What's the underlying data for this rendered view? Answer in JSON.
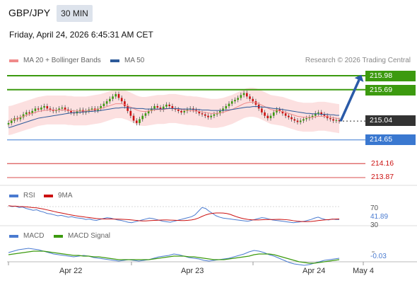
{
  "header": {
    "symbol": "GBP/JPY",
    "interval": "30 MIN",
    "timestamp": "Friday, April 24, 2026 6:45:31 AM CET"
  },
  "legend": {
    "ma20": {
      "label": "MA 20 + Bollinger Bands",
      "color": "#f08a8a"
    },
    "ma50": {
      "label": "MA 50",
      "color": "#2d5a9a"
    },
    "credit": "Research © 2026 Trading Central"
  },
  "chart_data": {
    "type": "line",
    "price_levels": [
      {
        "value": 215.98,
        "label": "215.98",
        "style": "resistance",
        "color": "#3c9a0f"
      },
      {
        "value": 215.69,
        "label": "215.69",
        "style": "resistance",
        "color": "#3c9a0f"
      },
      {
        "value": 215.04,
        "label": "215.04",
        "style": "last-price",
        "color": "#333333"
      },
      {
        "value": 214.65,
        "label": "214.65",
        "style": "pivot",
        "color": "#3a78d0"
      },
      {
        "value": 214.16,
        "label": "214.16",
        "style": "support",
        "color": "#cc1111"
      },
      {
        "value": 213.87,
        "label": "213.87",
        "style": "support",
        "color": "#cc1111"
      }
    ],
    "x_ticks": [
      "Apr 22",
      "Apr 23",
      "Apr 24",
      "May 4"
    ],
    "price_range": [
      213.7,
      216.15
    ],
    "close": [
      215.0,
      215.05,
      215.1,
      215.08,
      215.12,
      215.18,
      215.22,
      215.2,
      215.25,
      215.3,
      215.28,
      215.32,
      215.35,
      215.3,
      215.28,
      215.25,
      215.27,
      215.3,
      215.32,
      215.28,
      215.25,
      215.22,
      215.2,
      215.24,
      215.27,
      215.22,
      215.25,
      215.28,
      215.3,
      215.26,
      215.3,
      215.35,
      215.4,
      215.45,
      215.5,
      215.55,
      215.6,
      215.52,
      215.45,
      215.35,
      215.25,
      215.15,
      215.05,
      215.0,
      215.08,
      215.15,
      215.2,
      215.25,
      215.3,
      215.35,
      215.32,
      215.28,
      215.34,
      215.38,
      215.35,
      215.3,
      215.28,
      215.25,
      215.22,
      215.25,
      215.28,
      215.3,
      215.27,
      215.24,
      215.2,
      215.18,
      215.15,
      215.12,
      215.15,
      215.18,
      215.2,
      215.25,
      215.3,
      215.35,
      215.4,
      215.45,
      215.48,
      215.52,
      215.58,
      215.62,
      215.55,
      215.5,
      215.45,
      215.38,
      215.3,
      215.22,
      215.15,
      215.1,
      215.15,
      215.22,
      215.28,
      215.25,
      215.2,
      215.15,
      215.12,
      215.08,
      215.05,
      215.02,
      215.05,
      215.08,
      215.1,
      215.12,
      215.15,
      215.2,
      215.22,
      215.18,
      215.15,
      215.1,
      215.08,
      215.05,
      215.06,
      215.04
    ],
    "ma20": [
      215.05,
      215.06,
      215.08,
      215.1,
      215.12,
      215.14,
      215.16,
      215.18,
      215.2,
      215.22,
      215.24,
      215.25,
      215.26,
      215.27,
      215.27,
      215.27,
      215.27,
      215.27,
      215.27,
      215.27,
      215.26,
      215.26,
      215.25,
      215.25,
      215.25,
      215.25,
      215.25,
      215.26,
      215.27,
      215.28,
      215.29,
      215.3,
      215.32,
      215.34,
      215.36,
      215.38,
      215.4,
      215.4,
      215.4,
      215.38,
      215.36,
      215.33,
      215.3,
      215.27,
      215.25,
      215.24,
      215.24,
      215.25,
      215.26,
      215.27,
      215.28,
      215.28,
      215.28,
      215.29,
      215.3,
      215.3,
      215.3,
      215.29,
      215.28,
      215.27,
      215.26,
      215.26,
      215.25,
      215.25,
      215.24,
      215.23,
      215.22,
      215.21,
      215.2,
      215.2,
      215.2,
      215.21,
      215.22,
      215.24,
      215.26,
      215.28,
      215.31,
      215.34,
      215.37,
      215.4,
      215.42,
      215.43,
      215.43,
      215.42,
      215.4,
      215.37,
      215.34,
      215.31,
      215.28,
      215.27,
      215.26,
      215.25,
      215.24,
      215.22,
      215.2,
      215.18,
      215.16,
      215.14,
      215.13,
      215.12,
      215.12,
      215.12,
      215.12,
      215.13,
      215.14,
      215.14,
      215.14,
      215.13,
      215.12,
      215.11,
      215.1,
      215.09
    ],
    "bb_width": 0.3,
    "ma50": [
      214.9,
      214.92,
      214.94,
      214.96,
      214.98,
      215.0,
      215.02,
      215.04,
      215.06,
      215.08,
      215.1,
      215.11,
      215.12,
      215.13,
      215.14,
      215.15,
      215.16,
      215.17,
      215.18,
      215.19,
      215.2,
      215.21,
      215.21,
      215.22,
      215.22,
      215.23,
      215.23,
      215.24,
      215.24,
      215.25,
      215.25,
      215.26,
      215.27,
      215.28,
      215.29,
      215.3,
      215.31,
      215.31,
      215.32,
      215.32,
      215.32,
      215.31,
      215.31,
      215.3,
      215.3,
      215.3,
      215.29,
      215.29,
      215.29,
      215.29,
      215.29,
      215.29,
      215.29,
      215.3,
      215.3,
      215.3,
      215.3,
      215.3,
      215.29,
      215.29,
      215.29,
      215.29,
      215.28,
      215.28,
      215.28,
      215.27,
      215.27,
      215.27,
      215.26,
      215.26,
      215.26,
      215.26,
      215.26,
      215.27,
      215.27,
      215.28,
      215.29,
      215.3,
      215.31,
      215.32,
      215.33,
      215.33,
      215.34,
      215.34,
      215.34,
      215.33,
      215.33,
      215.32,
      215.31,
      215.3,
      215.3,
      215.29,
      215.28,
      215.27,
      215.26,
      215.25,
      215.24,
      215.23,
      215.22,
      215.21,
      215.2,
      215.2,
      215.19,
      215.19,
      215.19,
      215.18,
      215.18,
      215.18,
      215.17,
      215.17,
      215.16,
      215.16
    ],
    "rsi": {
      "label": "RSI",
      "color": "#4a7bd0",
      "ma_label": "9MA",
      "ma_color": "#cc1111",
      "range": [
        0,
        100
      ],
      "levels": [
        70,
        30
      ],
      "level_labels": [
        "70",
        "30"
      ],
      "value": "41.89",
      "values": [
        72,
        70,
        71,
        68,
        69,
        66,
        64,
        62,
        63,
        60,
        58,
        55,
        54,
        52,
        50,
        51,
        49,
        47,
        48,
        46,
        45,
        44,
        42,
        43,
        41,
        40,
        42,
        44,
        46,
        45,
        43,
        41,
        40,
        38,
        36,
        35,
        37,
        39,
        41,
        43,
        45,
        44,
        42,
        40,
        38,
        37,
        36,
        38,
        40,
        42,
        44,
        46,
        48,
        52,
        60,
        68,
        66,
        60,
        55,
        50,
        47,
        45,
        44,
        43,
        42,
        41,
        40,
        39,
        38,
        40,
        42,
        44,
        46,
        45,
        43,
        41,
        40,
        39,
        38,
        37,
        36,
        35,
        36,
        37,
        38,
        40,
        42,
        45,
        47,
        44,
        42,
        41,
        43,
        42,
        41.89
      ]
    },
    "macd": {
      "label": "MACD",
      "color": "#4a7bd0",
      "signal_label": "MACD Signal",
      "signal_color": "#3c9a0f",
      "value": "-0.03",
      "range": [
        -0.2,
        0.15
      ],
      "values": [
        0.05,
        0.07,
        0.09,
        0.1,
        0.11,
        0.1,
        0.09,
        0.07,
        0.05,
        0.03,
        0.02,
        0.01,
        0.0,
        -0.01,
        0.0,
        0.01,
        0.0,
        -0.02,
        -0.03,
        -0.04,
        -0.05,
        -0.06,
        -0.07,
        -0.06,
        -0.05,
        -0.06,
        -0.07,
        -0.06,
        -0.05,
        -0.03,
        -0.01,
        0.0,
        0.01,
        0.03,
        0.02,
        0.0,
        -0.02,
        -0.03,
        -0.04,
        -0.06,
        -0.07,
        -0.06,
        -0.05,
        -0.04,
        -0.03,
        -0.01,
        0.01,
        0.03,
        0.06,
        0.08,
        0.07,
        0.05,
        0.02,
        0.0,
        -0.03,
        -0.06,
        -0.09,
        -0.11,
        -0.12,
        -0.13,
        -0.12,
        -0.1,
        -0.08,
        -0.06,
        -0.05,
        -0.04,
        -0.03
      ],
      "signal": [
        0.02,
        0.03,
        0.04,
        0.05,
        0.06,
        0.07,
        0.07,
        0.07,
        0.06,
        0.05,
        0.04,
        0.03,
        0.02,
        0.01,
        0.01,
        0.0,
        0.0,
        -0.01,
        -0.01,
        -0.02,
        -0.03,
        -0.04,
        -0.05,
        -0.05,
        -0.05,
        -0.05,
        -0.05,
        -0.05,
        -0.05,
        -0.04,
        -0.03,
        -0.02,
        -0.01,
        0.0,
        0.0,
        0.0,
        -0.01,
        -0.01,
        -0.02,
        -0.03,
        -0.04,
        -0.05,
        -0.05,
        -0.05,
        -0.04,
        -0.03,
        -0.02,
        -0.01,
        0.0,
        0.02,
        0.03,
        0.03,
        0.03,
        0.02,
        0.0,
        -0.02,
        -0.04,
        -0.06,
        -0.08,
        -0.09,
        -0.1,
        -0.1,
        -0.09,
        -0.08,
        -0.07,
        -0.06,
        -0.05
      ]
    },
    "projection": {
      "from": 215.04,
      "to": 215.98,
      "color": "#2a5aa8"
    }
  }
}
